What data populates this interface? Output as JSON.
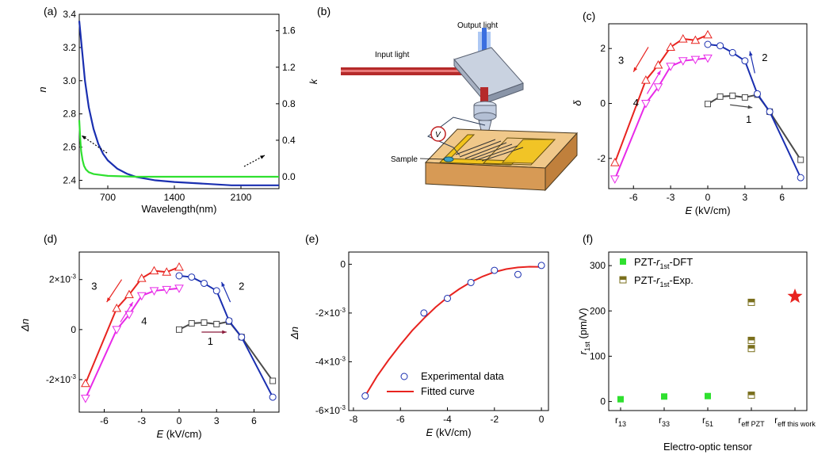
{
  "panel_labels": [
    "(a)",
    "(b)",
    "(c)",
    "(d)",
    "(e)",
    "(f)"
  ],
  "colors": {
    "red": "#e8231f",
    "blue": "#1a2fb0",
    "magenta": "#e82ae8",
    "gray": "#4a4a4a",
    "green": "#2fe02f",
    "olive": "#7a6f1c",
    "star": "#e8231f",
    "beam_red": "#b52a2a",
    "beam_blue": "#3b6fe0",
    "yellow": "#f2c41c",
    "wood": "#d9a067"
  },
  "schematic": {
    "label_input": "Input light",
    "label_output": "Output light",
    "label_sample": "Sample",
    "label_meter": "V",
    "icons": [
      "mirror-icon",
      "objective-lens-icon",
      "electrode-chip-icon",
      "voltmeter-icon"
    ]
  },
  "chart_data": [
    {
      "type": "line",
      "panel": "(a)",
      "xlabel": "Wavelength(nm)",
      "ylabel": "n",
      "y2label": "k",
      "xlim": [
        400,
        2500
      ],
      "ylim": [
        2.35,
        3.4
      ],
      "y2lim": [
        -0.13,
        1.78
      ],
      "xticks": [
        700,
        1400,
        2100
      ],
      "yticks": [
        2.4,
        2.6,
        2.8,
        3.0,
        3.2,
        3.4
      ],
      "y2ticks": [
        0.0,
        0.4,
        0.8,
        1.2,
        1.6
      ],
      "series": [
        {
          "axis": "left",
          "color": "blue",
          "x": [
            400,
            430,
            460,
            500,
            550,
            600,
            650,
            700,
            800,
            900,
            1000,
            1200,
            1400,
            1700,
            2000,
            2500
          ],
          "y": [
            3.36,
            3.18,
            3.0,
            2.84,
            2.71,
            2.62,
            2.56,
            2.52,
            2.47,
            2.44,
            2.42,
            2.4,
            2.39,
            2.38,
            2.37,
            2.37
          ]
        },
        {
          "axis": "right",
          "color": "green",
          "x": [
            400,
            410,
            420,
            435,
            450,
            470,
            500,
            550,
            700,
            1000,
            1500,
            2000,
            2500
          ],
          "y": [
            0.62,
            0.42,
            0.28,
            0.18,
            0.12,
            0.08,
            0.05,
            0.03,
            0.01,
            0.0,
            0.0,
            0.0,
            0.0
          ]
        }
      ]
    },
    {
      "type": "line",
      "panel": "(c)",
      "xlabel_italic": "E",
      "xlabel_rest": " (kV/cm)",
      "ylabel": "δ",
      "xlim": [
        -8,
        8
      ],
      "ylim": [
        -3.1,
        2.9
      ],
      "xticks": [
        -6,
        -3,
        0,
        3,
        6
      ],
      "yticks": [
        -2,
        0,
        2
      ],
      "annotations": [
        "1",
        "2",
        "3",
        "4"
      ],
      "series": [
        {
          "color": "gray",
          "marker": "square",
          "x": [
            0,
            1,
            2,
            3,
            4,
            5,
            7.5
          ],
          "y": [
            -0.02,
            0.25,
            0.28,
            0.22,
            0.32,
            -0.3,
            -2.05
          ]
        },
        {
          "color": "blue",
          "marker": "circle",
          "x": [
            0,
            1,
            2,
            3,
            4,
            5,
            7.5
          ],
          "y": [
            2.15,
            2.1,
            1.85,
            1.55,
            0.35,
            -0.3,
            -2.7
          ]
        },
        {
          "color": "red",
          "marker": "triangle-up",
          "x": [
            0,
            -1,
            -2,
            -3,
            -4,
            -5,
            -7.5
          ],
          "y": [
            2.5,
            2.3,
            2.35,
            2.05,
            1.4,
            0.85,
            -2.15
          ]
        },
        {
          "color": "magenta",
          "marker": "triangle-down",
          "x": [
            0,
            -1,
            -2,
            -3,
            -4,
            -5,
            -7.5
          ],
          "y": [
            1.65,
            1.6,
            1.55,
            1.35,
            0.6,
            0.0,
            -2.75
          ]
        }
      ]
    },
    {
      "type": "line",
      "panel": "(d)",
      "xlabel_italic": "E",
      "xlabel_rest": " (kV/cm)",
      "ylabel": "Δn",
      "xlim": [
        -8,
        8
      ],
      "ylim": [
        -0.0033,
        0.0031
      ],
      "xticks": [
        -6,
        -3,
        0,
        3,
        6
      ],
      "yticks": [
        -0.002,
        0,
        0.002
      ],
      "ytick_labels": [
        [
          "-2×10",
          "-3"
        ],
        [
          "0",
          ""
        ],
        [
          "2×10",
          "-3"
        ]
      ],
      "annotations": [
        "1",
        "2",
        "3",
        "4"
      ],
      "series": [
        {
          "color": "gray",
          "marker": "square",
          "x": [
            0,
            1,
            2,
            3,
            4,
            5,
            7.5
          ],
          "y": [
            0.0,
            0.00025,
            0.00028,
            0.00022,
            0.00032,
            -0.0003,
            -0.00205
          ]
        },
        {
          "color": "blue",
          "marker": "circle",
          "x": [
            0,
            1,
            2,
            3,
            4,
            5,
            7.5
          ],
          "y": [
            0.00215,
            0.0021,
            0.00185,
            0.00155,
            0.00035,
            -0.0003,
            -0.0027
          ]
        },
        {
          "color": "red",
          "marker": "triangle-up",
          "x": [
            0,
            -1,
            -2,
            -3,
            -4,
            -5,
            -7.5
          ],
          "y": [
            0.0025,
            0.0023,
            0.00235,
            0.00205,
            0.0014,
            0.00085,
            -0.00215
          ]
        },
        {
          "color": "magenta",
          "marker": "triangle-down",
          "x": [
            0,
            -1,
            -2,
            -3,
            -4,
            -5,
            -7.5
          ],
          "y": [
            0.00165,
            0.0016,
            0.00155,
            0.00135,
            0.0006,
            0.0,
            -0.00275
          ]
        }
      ]
    },
    {
      "type": "scatter",
      "panel": "(e)",
      "xlabel_italic": "E",
      "xlabel_rest": " (kV/cm)",
      "ylabel": "Δn",
      "xlim": [
        -8.2,
        0.3
      ],
      "ylim": [
        -0.006,
        0.0005
      ],
      "xticks": [
        -8,
        -6,
        -4,
        -2,
        0
      ],
      "xtick_labels": [
        "-8",
        "-6",
        "-4",
        "-2",
        "0"
      ],
      "yticks": [
        -0.006,
        -0.004,
        -0.002,
        0
      ],
      "ytick_labels": [
        [
          "-6×10",
          "-3"
        ],
        [
          "-4×10",
          "-3"
        ],
        [
          "-2×10",
          "-3"
        ],
        [
          "0",
          ""
        ]
      ],
      "legend": [
        "Experimental data",
        "Fitted curve"
      ],
      "legend_placement": "bottom-right",
      "series": [
        {
          "name": "Experimental data",
          "color": "blue",
          "marker": "circle",
          "x": [
            -7.5,
            -5,
            -4,
            -3,
            -2,
            -1,
            0
          ],
          "y": [
            -0.0054,
            -0.002,
            -0.0014,
            -0.00075,
            -0.00025,
            -0.00042,
            -5e-05
          ]
        },
        {
          "name": "Fitted curve",
          "color": "red",
          "fit": "quadratic",
          "x": [
            -7.5,
            -7,
            -6.5,
            -6,
            -5.5,
            -5,
            -4.5,
            -4,
            -3.5,
            -3,
            -2.5,
            -2,
            -1.5,
            -1,
            -0.5,
            0
          ],
          "y": [
            -0.0054,
            -0.0046,
            -0.00392,
            -0.0033,
            -0.00272,
            -0.00222,
            -0.00176,
            -0.00136,
            -0.00102,
            -0.00073,
            -0.0005,
            -0.00032,
            -0.0002,
            -0.00013,
            -0.0001,
            -0.00011
          ]
        }
      ]
    },
    {
      "type": "scatter",
      "panel": "(f)",
      "xlabel": "Electro-optic tensor",
      "ylabel_main": "r",
      "ylabel_sub": "1st",
      "ylabel_rest": " (pm/V)",
      "ylim": [
        -20,
        330
      ],
      "yticks": [
        0,
        100,
        200,
        300
      ],
      "categories": [
        {
          "main": "r",
          "sub": "13"
        },
        {
          "main": "r",
          "sub": "33"
        },
        {
          "main": "r",
          "sub": "51"
        },
        {
          "main": "r",
          "sub": "eff PZT"
        },
        {
          "main": "r",
          "sub": "eff this work"
        }
      ],
      "legend": [
        {
          "pre": "PZT-",
          "it": "r",
          "sub": "1st",
          "post": "-DFT"
        },
        {
          "pre": "PZT-",
          "it": "r",
          "sub": "1st",
          "post": "-Exp."
        }
      ],
      "legend_placement": "top-left",
      "series": [
        {
          "name": "PZT-r1st-DFT",
          "color": "green",
          "marker": "square",
          "points": [
            [
              0,
              5
            ],
            [
              1,
              11
            ],
            [
              2,
              12
            ]
          ]
        },
        {
          "name": "PZT-r1st-Exp.",
          "color": "olive",
          "marker": "square-half",
          "points": [
            [
              3,
              219
            ],
            [
              3,
              135
            ],
            [
              3,
              117
            ],
            [
              3,
              14
            ]
          ]
        },
        {
          "name": "this work",
          "color": "star",
          "marker": "star",
          "points": [
            [
              4,
              232
            ]
          ]
        }
      ]
    }
  ]
}
